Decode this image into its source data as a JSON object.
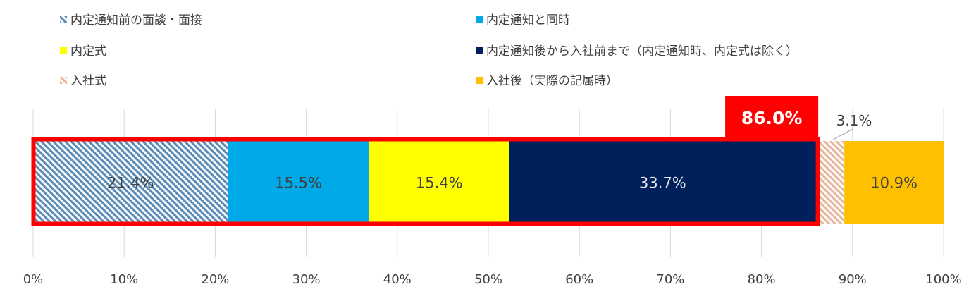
{
  "chart_data": {
    "type": "bar",
    "orientation": "horizontal",
    "stacked": true,
    "categories": [
      ""
    ],
    "series": [
      {
        "name": "内定通知前の面談・面接",
        "values": [
          21.4
        ],
        "label": "21.4%",
        "color": "#5B8DB8",
        "pattern": "diagonal-hatch"
      },
      {
        "name": "内定通知と同時",
        "values": [
          15.5
        ],
        "label": "15.5%",
        "color": "#00A9E8"
      },
      {
        "name": "内定式",
        "values": [
          15.4
        ],
        "label": "15.4%",
        "color": "#FFFF00"
      },
      {
        "name": "内定通知後から入社前まで（内定通知時、内定式は除く）",
        "values": [
          33.7
        ],
        "label": "33.7%",
        "color": "#00205B"
      },
      {
        "name": "入社式",
        "values": [
          3.1
        ],
        "label": "3.1%",
        "color": "#E8B89A",
        "pattern": "diagonal-hatch"
      },
      {
        "name": "入社後（実際の記属時）",
        "values": [
          10.9
        ],
        "label": "10.9%",
        "color": "#FFC000"
      }
    ],
    "xlim": [
      0,
      100
    ],
    "x_ticks": [
      "0%",
      "10%",
      "20%",
      "30%",
      "40%",
      "50%",
      "60%",
      "70%",
      "80%",
      "90%",
      "100%"
    ],
    "grid": "vertical",
    "legend_position": "top",
    "annotation": {
      "text": "86.0%",
      "value": 86.0,
      "color": "#FF0000"
    }
  }
}
